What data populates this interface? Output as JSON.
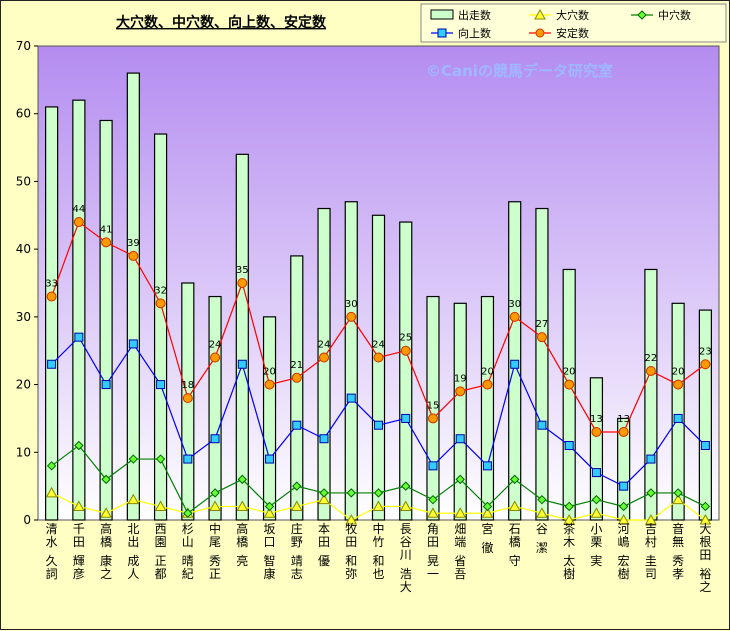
{
  "chart_data": {
    "type": "bar",
    "title": "大穴数、中穴数、向上数、安定数",
    "watermark": "©Caniの競馬データ研究室",
    "ylim": [
      0,
      70
    ],
    "yticks": [
      0,
      10,
      20,
      30,
      40,
      50,
      60,
      70
    ],
    "grid": false,
    "legend": "top-right",
    "categories": [
      "清水 久詞",
      "千田 輝彦",
      "高橋 康之",
      "北出 成人",
      "西園 正都",
      "杉山 晴紀",
      "中尾 秀正",
      "高橋 亮",
      "坂口 智康",
      "庄野 靖志",
      "本田 優",
      "牧田 和弥",
      "中竹 和也",
      "長谷川 浩大",
      "角田 晃一",
      "畑端 省吾",
      "宮 徹",
      "石橋 守",
      "谷 潔",
      "茶木 太樹",
      "小栗 実",
      "河嶋 宏樹",
      "吉村 圭司",
      "音無 秀孝",
      "大根田 裕之"
    ],
    "series": [
      {
        "name": "出走数",
        "type": "bar",
        "color": "#ccffcc",
        "values": [
          61,
          62,
          59,
          66,
          57,
          35,
          33,
          54,
          30,
          39,
          46,
          47,
          45,
          44,
          33,
          32,
          33,
          47,
          46,
          37,
          21,
          15,
          37,
          32,
          31
        ]
      },
      {
        "name": "大穴数",
        "type": "line",
        "color": "#ffff00",
        "marker": "triangle",
        "values": [
          4,
          2,
          1,
          3,
          2,
          1,
          2,
          2,
          1,
          2,
          3,
          0,
          2,
          2,
          1,
          1,
          1,
          2,
          1,
          0,
          1,
          0,
          0,
          3,
          0
        ]
      },
      {
        "name": "中穴数",
        "type": "line",
        "color": "#008000",
        "marker": "diamond",
        "values": [
          8,
          11,
          6,
          9,
          9,
          1,
          4,
          6,
          2,
          5,
          4,
          4,
          4,
          5,
          3,
          6,
          2,
          6,
          3,
          2,
          3,
          2,
          4,
          4,
          2
        ]
      },
      {
        "name": "向上数",
        "type": "line",
        "color": "#0000ff",
        "marker": "square",
        "values": [
          23,
          27,
          20,
          26,
          20,
          9,
          12,
          23,
          9,
          14,
          12,
          18,
          14,
          15,
          8,
          12,
          8,
          23,
          14,
          11,
          7,
          5,
          9,
          15,
          11
        ]
      },
      {
        "name": "安定数",
        "type": "line",
        "color": "#ff0000",
        "marker": "circle",
        "values": [
          33,
          44,
          41,
          39,
          32,
          18,
          24,
          35,
          20,
          21,
          24,
          30,
          24,
          25,
          15,
          19,
          20,
          30,
          27,
          20,
          13,
          13,
          22,
          20,
          23
        ]
      }
    ]
  }
}
